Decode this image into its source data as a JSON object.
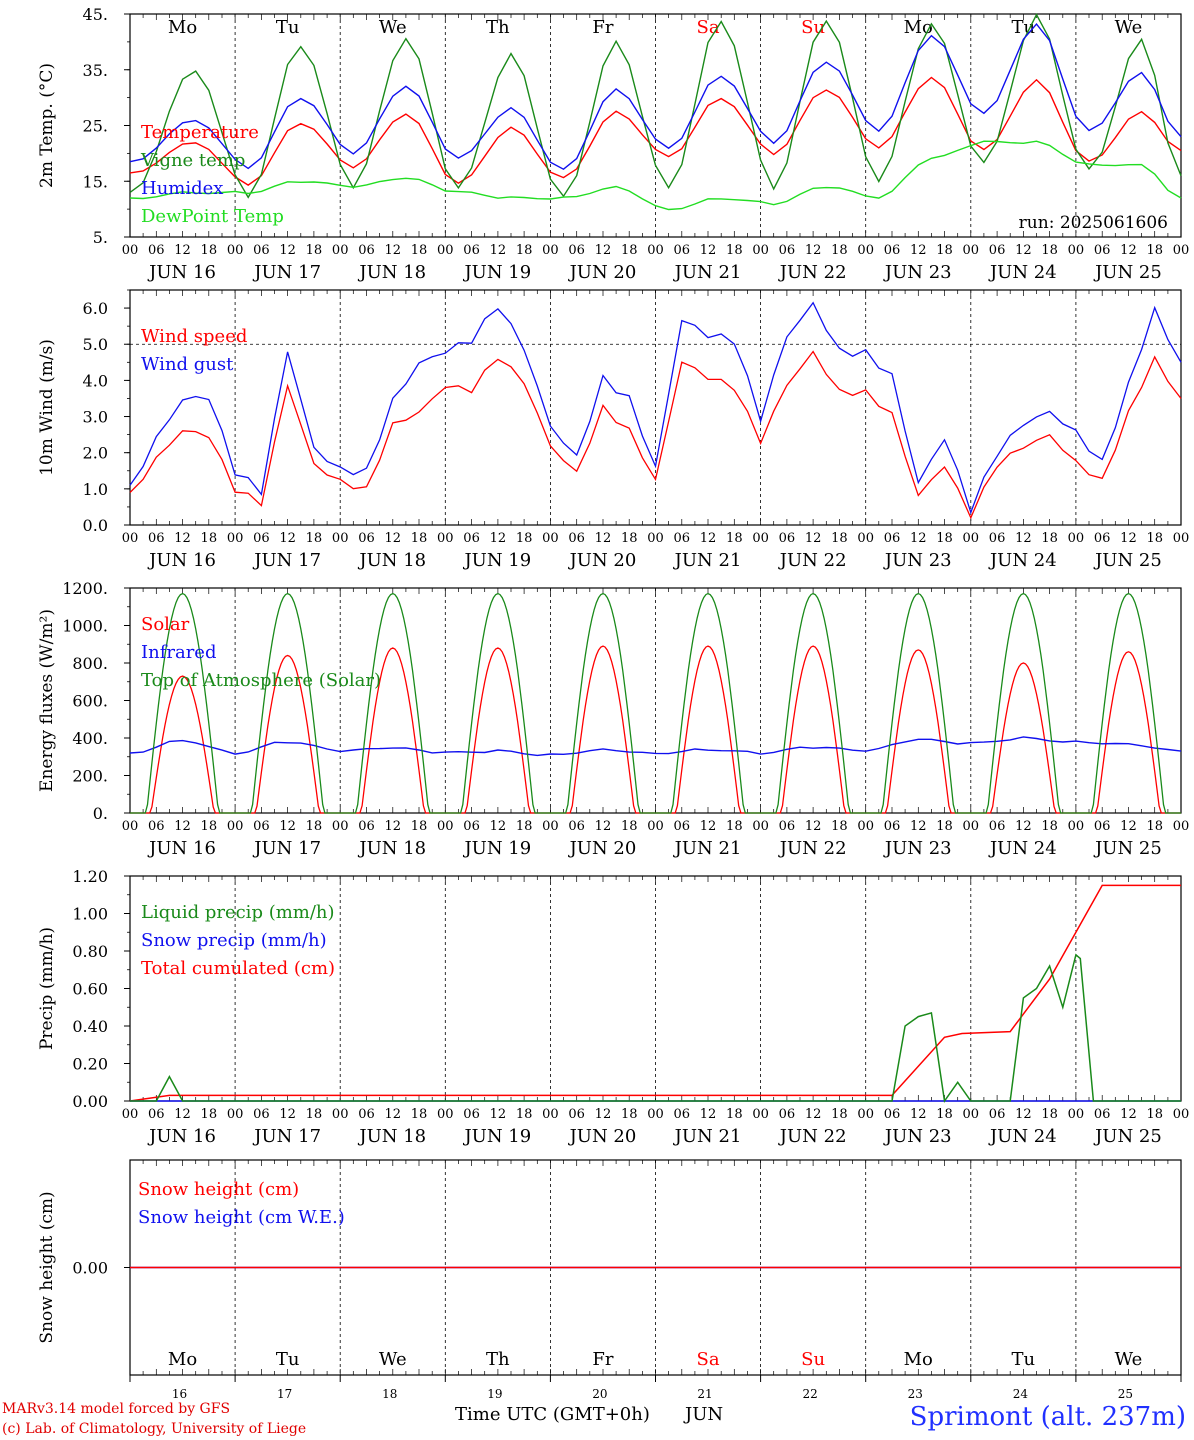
{
  "colors": {
    "red": "#ff0000",
    "green": "#1a8a1a",
    "blue": "#1010ee",
    "lightgreen": "#22dd22",
    "weekend": "#ff0000",
    "station": "#2030ff"
  },
  "days": {
    "weekday_labels": [
      "Mo",
      "Tu",
      "We",
      "Th",
      "Fr",
      "Sa",
      "Su",
      "Mo",
      "Tu",
      "We"
    ],
    "weekend_flags": [
      false,
      false,
      false,
      false,
      false,
      true,
      true,
      false,
      false,
      false
    ],
    "date_labels": [
      "JUN 16",
      "JUN 17",
      "JUN 18",
      "JUN 19",
      "JUN 20",
      "JUN 21",
      "JUN 22",
      "JUN 23",
      "JUN 24",
      "JUN 25"
    ],
    "day_numbers": [
      "16",
      "17",
      "18",
      "19",
      "20",
      "21",
      "22",
      "23",
      "24",
      "25"
    ],
    "hour_ticks": [
      "00",
      "06",
      "12",
      "18"
    ],
    "final_tick": "00"
  },
  "footer": {
    "credit1": "MARv3.14 model forced by GFS",
    "credit2": "(c) Lab. of Climatology, University of Liege",
    "xlabel": "Time UTC (GMT+0h)",
    "month": "JUN",
    "station": "Sprimont (alt. 237m)"
  },
  "chart_data": [
    {
      "type": "line",
      "ylabel": "2m Temp. (°C)",
      "ylim": [
        5,
        45
      ],
      "yticks": [
        5,
        15,
        25,
        35,
        45
      ],
      "ytick_labels": [
        "5.",
        "15.",
        "25.",
        "35.",
        "45."
      ],
      "annotation": "run: 2025061606",
      "x_hours_from_jun16_00": [
        0,
        15,
        27,
        39,
        51,
        63,
        75,
        87,
        99,
        111,
        123,
        135,
        147,
        159,
        171,
        183,
        195,
        207,
        219,
        231,
        240
      ],
      "series": [
        {
          "name": "Temperature",
          "color": "red",
          "values": [
            16.5,
            22,
            14.5,
            25.5,
            17.5,
            27,
            14.5,
            24.5,
            15.5,
            27.5,
            19.5,
            30,
            20,
            31.5,
            21,
            33.5,
            20.5,
            33,
            18.5,
            27.5,
            20.5
          ]
        },
        {
          "name": "Vigne temp",
          "color": "green",
          "values": [
            13,
            35,
            12.5,
            39.5,
            14,
            40.5,
            13.5,
            37.5,
            12,
            40,
            14,
            44,
            14,
            44,
            15,
            43,
            18,
            44.5,
            17,
            40.5,
            16
          ]
        },
        {
          "name": "Humidex",
          "color": "blue",
          "values": [
            18.5,
            26,
            17.5,
            30,
            20,
            32,
            19,
            28,
            17,
            31.5,
            21,
            34,
            22,
            36.5,
            24,
            41,
            27,
            43,
            24,
            34.5,
            23
          ]
        },
        {
          "name": "DewPoint Temp",
          "color": "lightgreen",
          "values": [
            12,
            13,
            13,
            15,
            14,
            15.5,
            13,
            12,
            12,
            14,
            10,
            12,
            11,
            14,
            12,
            19,
            22,
            22,
            18,
            18,
            12
          ]
        }
      ]
    },
    {
      "type": "line",
      "ylabel": "10m Wind (m/s)",
      "ylim": [
        0,
        6.5
      ],
      "yticks": [
        0,
        1,
        2,
        3,
        4,
        5,
        6
      ],
      "ytick_labels": [
        "0.0",
        "1.0",
        "2.0",
        "3.0",
        "4.0",
        "5.0",
        "6.0"
      ],
      "reference_line": 5.0,
      "x_hours_from_jun16_00": [
        0,
        6,
        12,
        18,
        24,
        30,
        36,
        42,
        48,
        54,
        60,
        66,
        72,
        78,
        84,
        90,
        96,
        102,
        108,
        114,
        120,
        126,
        132,
        138,
        144,
        150,
        156,
        162,
        168,
        174,
        180,
        186,
        192,
        198,
        204,
        210,
        216,
        222,
        228,
        234,
        240
      ],
      "series": [
        {
          "name": "Wind speed",
          "color": "red",
          "values": [
            0.9,
            2.0,
            2.8,
            2.6,
            1.0,
            0.5,
            3.7,
            1.5,
            1.1,
            1.0,
            2.9,
            3.3,
            4.0,
            3.8,
            4.6,
            3.8,
            2.0,
            1.3,
            3.2,
            2.7,
            1.4,
            4.7,
            4.2,
            3.8,
            2.2,
            3.7,
            4.6,
            3.6,
            3.7,
            3.2,
            1.0,
            1.8,
            0.3,
            1.6,
            2.0,
            2.3,
            1.6,
            1.2,
            3.2,
            4.8,
            3.5
          ]
        },
        {
          "name": "Wind gust",
          "color": "blue",
          "values": [
            1.1,
            2.6,
            3.7,
            3.7,
            1.5,
            0.8,
            4.6,
            1.9,
            1.4,
            1.5,
            3.6,
            4.7,
            5.0,
            5.2,
            6.0,
            4.7,
            2.5,
            1.7,
            4.0,
            3.6,
            1.8,
            5.9,
            5.4,
            5.1,
            2.8,
            5.0,
            5.9,
            4.7,
            4.8,
            4.3,
            1.4,
            2.6,
            0.5,
            1.9,
            2.6,
            2.9,
            2.4,
            1.7,
            4.0,
            6.2,
            4.5
          ]
        }
      ]
    },
    {
      "type": "line",
      "ylabel": "Energy fluxes (W/m²)",
      "ylim": [
        0,
        1200
      ],
      "yticks": [
        0,
        200,
        400,
        600,
        800,
        1000,
        1200
      ],
      "ytick_labels": [
        "0.",
        "200.",
        "400.",
        "600.",
        "800.",
        "1000.",
        "1200."
      ],
      "series": [
        {
          "name": "Solar",
          "color": "red",
          "daily_peaks": [
            730,
            840,
            880,
            880,
            890,
            890,
            890,
            870,
            800,
            860
          ]
        },
        {
          "name": "Infrared",
          "color": "blue",
          "x_hours_from_jun16_00": [
            0,
            12,
            24,
            36,
            48,
            60,
            72,
            84,
            96,
            108,
            120,
            132,
            144,
            156,
            168,
            180,
            192,
            204,
            216,
            228,
            240
          ],
          "values": [
            320,
            390,
            320,
            380,
            330,
            345,
            320,
            330,
            310,
            340,
            320,
            340,
            320,
            350,
            330,
            390,
            370,
            400,
            380,
            370,
            330
          ]
        },
        {
          "name": "Top of Atmosphere (Solar)",
          "color": "green",
          "daily_peaks": [
            1170,
            1170,
            1170,
            1170,
            1170,
            1170,
            1170,
            1170,
            1170,
            1170
          ]
        }
      ]
    },
    {
      "type": "line",
      "ylabel": "Precip (mm/h)",
      "ylim": [
        0,
        1.2
      ],
      "yticks": [
        0,
        0.2,
        0.4,
        0.6,
        0.8,
        1.0,
        1.2
      ],
      "ytick_labels": [
        "0.00",
        "0.20",
        "0.40",
        "0.60",
        "0.80",
        "1.00",
        "1.20"
      ],
      "series": [
        {
          "name": "Liquid precip (mm/h)",
          "color": "green",
          "x_hours_from_jun16_00": [
            0,
            6,
            9,
            12,
            13,
            174,
            177,
            180,
            183,
            186,
            189,
            192,
            195,
            198,
            201,
            204,
            207,
            210,
            213,
            216,
            217,
            220,
            240
          ],
          "values": [
            0,
            0,
            0.13,
            0,
            0,
            0,
            0.4,
            0.45,
            0.47,
            0,
            0.1,
            0,
            0,
            0,
            0,
            0.55,
            0.6,
            0.72,
            0.5,
            0.78,
            0.76,
            0,
            0
          ]
        },
        {
          "name": "Snow precip (mm/h)",
          "color": "blue",
          "x_hours_from_jun16_00": [
            0,
            240
          ],
          "values": [
            0,
            0
          ]
        },
        {
          "name": "Total cumulated (cm)",
          "color": "red",
          "x_hours_from_jun16_00": [
            0,
            9,
            12,
            174,
            186,
            190,
            201,
            210,
            216,
            222,
            240
          ],
          "values": [
            0,
            0.03,
            0.03,
            0.03,
            0.34,
            0.36,
            0.37,
            0.65,
            0.9,
            1.15,
            1.15
          ]
        }
      ]
    },
    {
      "type": "line",
      "ylabel": "Snow height (cm)",
      "yticks": [
        0
      ],
      "ytick_labels": [
        "0.00"
      ],
      "series": [
        {
          "name": "Snow height (cm)",
          "color": "red",
          "x_hours_from_jun16_00": [
            0,
            240
          ],
          "values": [
            0,
            0
          ]
        },
        {
          "name": "Snow height (cm W.E.)",
          "color": "blue",
          "x_hours_from_jun16_00": [
            0,
            240
          ],
          "values": [
            0,
            0
          ]
        }
      ]
    }
  ]
}
